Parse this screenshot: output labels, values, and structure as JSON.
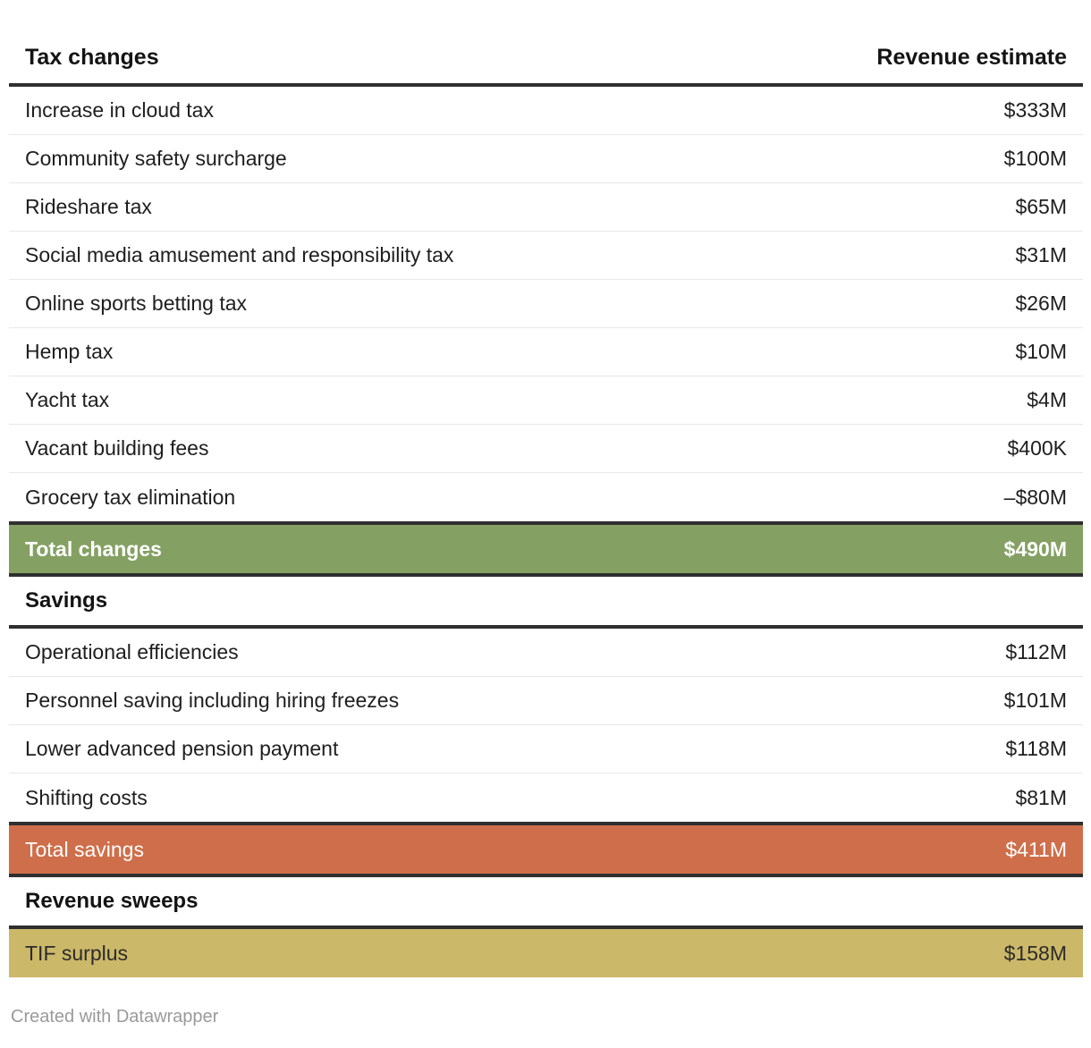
{
  "chart_data": {
    "type": "table",
    "columns": [
      "Tax changes",
      "Revenue estimate"
    ],
    "rows": [
      {
        "type": "data",
        "label": "Increase in cloud tax",
        "value": "$333M"
      },
      {
        "type": "data",
        "label": "Community safety surcharge",
        "value": "$100M"
      },
      {
        "type": "data",
        "label": "Rideshare tax",
        "value": "$65M"
      },
      {
        "type": "data",
        "label": "Social media amusement and responsibility tax",
        "value": "$31M"
      },
      {
        "type": "data",
        "label": "Online sports betting tax",
        "value": "$26M"
      },
      {
        "type": "data",
        "label": "Hemp tax",
        "value": "$10M"
      },
      {
        "type": "data",
        "label": "Yacht tax",
        "value": "$4M"
      },
      {
        "type": "data",
        "label": "Vacant building fees",
        "value": "$400K"
      },
      {
        "type": "data",
        "label": "Grocery tax elimination",
        "value": "–$80M"
      },
      {
        "type": "total_green",
        "label": "Total changes",
        "value": "$490M"
      },
      {
        "type": "section",
        "label": "Savings",
        "value": null
      },
      {
        "type": "data",
        "label": "Operational efficiencies",
        "value": "$112M"
      },
      {
        "type": "data",
        "label": "Personnel saving including hiring freezes",
        "value": "$101M"
      },
      {
        "type": "data",
        "label": "Lower advanced pension payment",
        "value": "$118M"
      },
      {
        "type": "data",
        "label": "Shifting costs",
        "value": "$81M"
      },
      {
        "type": "total_orange",
        "label": "Total savings",
        "value": "$411M"
      },
      {
        "type": "section",
        "label": "Revenue sweeps",
        "value": null
      },
      {
        "type": "total_gold",
        "label": "TIF surplus",
        "value": "$158M"
      }
    ],
    "legend_position": "none",
    "grid": "horizontal-dividers"
  },
  "footer": {
    "credit": "Created with Datawrapper"
  },
  "colors": {
    "total_changes_bg": "#84a163",
    "total_savings_bg": "#cf6e4a",
    "tif_surplus_bg": "#ccb869",
    "border_dark": "#2f2f2f",
    "row_divider": "#e8e8e8",
    "total_text_light": "#ffffff",
    "credit_text": "#9a9a9a"
  }
}
